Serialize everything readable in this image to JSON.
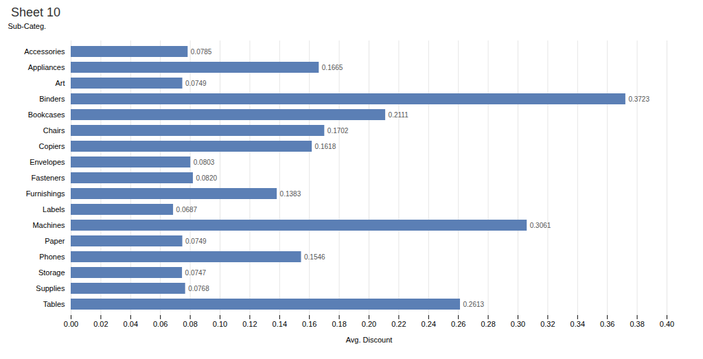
{
  "chart_data": {
    "type": "bar",
    "orientation": "horizontal",
    "title": "Sheet 10",
    "xlabel": "Avg. Discount",
    "ylabel": "Sub-Categ.",
    "categories": [
      "Accessories",
      "Appliances",
      "Art",
      "Binders",
      "Bookcases",
      "Chairs",
      "Copiers",
      "Envelopes",
      "Fasteners",
      "Furnishings",
      "Labels",
      "Machines",
      "Paper",
      "Phones",
      "Storage",
      "Supplies",
      "Tables"
    ],
    "values": [
      0.0785,
      0.1665,
      0.0749,
      0.3723,
      0.2111,
      0.1702,
      0.1618,
      0.0803,
      0.082,
      0.1383,
      0.0687,
      0.3061,
      0.0749,
      0.1546,
      0.0747,
      0.0768,
      0.2613
    ],
    "value_labels": [
      "0.0785",
      "0.1665",
      "0.0749",
      "0.3723",
      "0.2111",
      "0.1702",
      "0.1618",
      "0.0803",
      "0.0820",
      "0.1383",
      "0.0687",
      "0.3061",
      "0.0749",
      "0.1546",
      "0.0747",
      "0.0768",
      "0.2613"
    ],
    "color": "#5b7fb5",
    "data_labels": true,
    "grid": true,
    "xlim": [
      0,
      0.4
    ],
    "xticks": [
      {
        "value": 0,
        "label": "0.00"
      },
      0.02,
      0.04,
      0.06,
      0.08,
      {
        "value": 0.1,
        "label": "0.10"
      },
      0.12,
      0.14,
      0.16,
      0.18,
      {
        "value": 0.2,
        "label": "0.20"
      },
      0.22,
      0.24,
      0.26,
      0.28,
      {
        "value": 0.3,
        "label": "0.30"
      },
      0.32,
      0.34,
      0.36,
      0.38,
      {
        "value": 0.4,
        "label": "0.40"
      }
    ]
  }
}
